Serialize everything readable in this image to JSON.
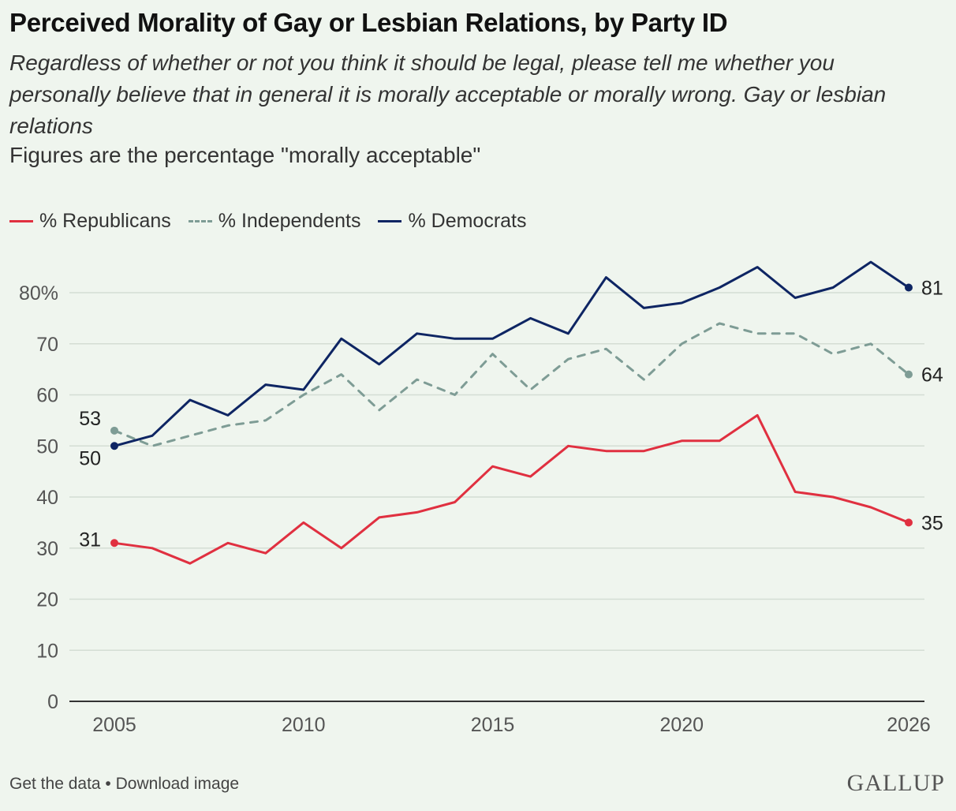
{
  "header": {
    "title": "Perceived Morality of Gay or Lesbian Relations, by Party ID",
    "subtitle": "Regardless of whether or not you think it should be legal, please tell me whether you personally believe that in general it is morally acceptable or morally wrong. Gay or lesbian relations",
    "note": "Figures are the percentage \"morally acceptable\""
  },
  "footer": {
    "get_data": "Get the data",
    "separator": " • ",
    "download": "Download image",
    "logo": "GALLUP"
  },
  "colors": {
    "republicans": "#e03040",
    "independents": "#7e9c95",
    "democrats": "#0e2563",
    "grid": "#d4ddd4",
    "axis": "#333333",
    "tick_text": "#555555"
  },
  "chart_data": {
    "type": "line",
    "title": "Perceived Morality of Gay or Lesbian Relations, by Party ID",
    "xlabel": "",
    "ylabel": "",
    "xlim": [
      2005,
      2026
    ],
    "ylim": [
      0,
      80
    ],
    "x_ticks": [
      2005,
      2010,
      2015,
      2020,
      2026
    ],
    "y_ticks": [
      0,
      10,
      20,
      30,
      40,
      50,
      60,
      70,
      80
    ],
    "y_tick_labels": [
      "0",
      "10",
      "20",
      "30",
      "40",
      "50",
      "60",
      "70",
      "80%"
    ],
    "grid": true,
    "legend_position": "top-left",
    "x": [
      2005,
      2006,
      2007,
      2008,
      2009,
      2010,
      2011,
      2012,
      2013,
      2014,
      2015,
      2016,
      2017,
      2018,
      2019,
      2020,
      2021,
      2022,
      2023,
      2024,
      2025,
      2026
    ],
    "series": [
      {
        "name": "% Republicans",
        "key": "republicans",
        "dashed": false,
        "values": [
          31,
          30,
          27,
          31,
          29,
          35,
          30,
          36,
          37,
          39,
          46,
          44,
          50,
          49,
          49,
          51,
          51,
          56,
          41,
          40,
          38,
          35
        ],
        "start_label": "31",
        "end_label": "35"
      },
      {
        "name": "% Independents",
        "key": "independents",
        "dashed": true,
        "values": [
          53,
          50,
          52,
          54,
          55,
          60,
          64,
          57,
          63,
          60,
          68,
          61,
          67,
          69,
          63,
          70,
          74,
          72,
          72,
          68,
          70,
          64
        ],
        "start_label": "53",
        "end_label": "64"
      },
      {
        "name": "% Democrats",
        "key": "democrats",
        "dashed": false,
        "values": [
          50,
          52,
          59,
          56,
          62,
          61,
          71,
          66,
          72,
          71,
          71,
          75,
          72,
          83,
          77,
          78,
          81,
          85,
          79,
          81,
          86,
          81
        ],
        "start_label": "50",
        "end_label": "81"
      }
    ]
  }
}
